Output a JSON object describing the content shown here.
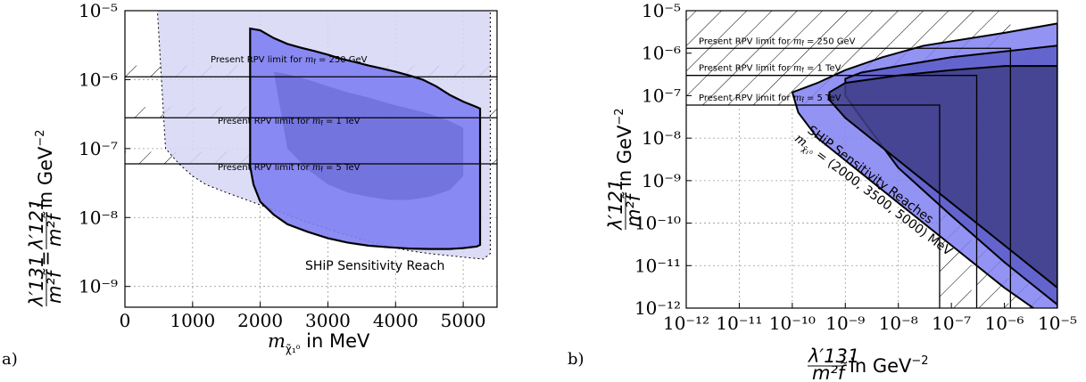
{
  "panel_a_label": "a)",
  "panel_b_label": "b)",
  "colors": {
    "light_region": "#d6d6f6",
    "mid_region": "#8080f2",
    "dark_region": "#5c5cc8",
    "dark_b": "#40408a",
    "band_fill": "#ffffff"
  },
  "chart_data": [
    {
      "type": "area",
      "panel": "a)",
      "xlabel": "m_{χ̃₁⁰} in MeV",
      "xlabel_main": "m",
      "xlabel_sub": "χ̃₁⁰",
      "xlabel_rest": " in MeV",
      "ylabel": "λ'131/m²f̃ = λ'121/m²f̃ in GeV⁻²",
      "ylabel_text": "in GeV",
      "ylabel_exp": "−2",
      "ylabel_frac1_num": "λ′131",
      "ylabel_frac2_num": "λ′121",
      "ylabel_den": "m²f̃",
      "xlim": [
        0,
        5500
      ],
      "ylim": [
        5e-10,
        1e-05
      ],
      "yscale": "log",
      "grid": true,
      "x_ticks": [
        "0",
        "1000",
        "2000",
        "3000",
        "4000",
        "5000"
      ],
      "x_tick_values": [
        0,
        1000,
        2000,
        3000,
        4000,
        5000
      ],
      "y_ticks": [
        "10⁻⁵",
        "10⁻⁶",
        "10⁻⁷",
        "10⁻⁸",
        "10⁻⁹"
      ],
      "y_tick_values": [
        1e-05,
        1e-06,
        1e-07,
        1e-08,
        1e-09
      ],
      "annotations": [
        {
          "text": "Present RPV limit for m_f̃ = 250 GeV",
          "prefix": "Present RPV limit for ",
          "var": "m",
          "sub": "f̃",
          "suffix": " = 250 GeV",
          "y": 1.1e-06
        },
        {
          "text": "Present RPV limit for m_f̃ = 1 TeV",
          "prefix": "Present RPV limit for ",
          "var": "m",
          "sub": "f̃",
          "suffix": " = 1 TeV",
          "y": 2.8e-07
        },
        {
          "text": "Present RPV limit for m_f̃ = 5 TeV",
          "prefix": "Present RPV limit for ",
          "var": "m",
          "sub": "f̃",
          "suffix": " = 5 TeV",
          "y": 6e-08
        }
      ],
      "sensitivity_label": "SHiP Sensitivity Reach",
      "series": [
        {
          "name": "",
          "role": "outer-dotted",
          "x": [
            480,
            500,
            700,
            900,
            1100,
            1300,
            1500,
            1700,
            1900,
            2100,
            2300,
            2500,
            2700,
            2900,
            3100,
            3300,
            3500,
            3700,
            3900,
            4100,
            4300,
            4500,
            4700,
            4900,
            5100,
            5300,
            5400,
            5400,
            5300,
            5100,
            4800,
            4500,
            4200,
            3900,
            3600,
            3300,
            3000,
            2700,
            2400,
            2100,
            1800,
            1500,
            1200,
            1000,
            800,
            600,
            480
          ],
          "y": [
            1e-05,
            1e-05,
            1e-05,
            1e-05,
            1e-05,
            1e-05,
            1e-05,
            1e-05,
            1e-05,
            1e-05,
            1e-05,
            1e-05,
            1e-05,
            1e-05,
            1e-05,
            1e-05,
            1e-05,
            1e-05,
            1e-05,
            1e-05,
            1e-05,
            1e-05,
            1e-05,
            1e-05,
            1e-05,
            1e-05,
            1e-05,
            3e-09,
            2.5e-09,
            2.6e-09,
            2.8e-09,
            3e-09,
            3.3e-09,
            3.8e-09,
            4.5e-09,
            5.5e-09,
            6.8e-09,
            8.5e-09,
            1.1e-08,
            1.4e-08,
            1.8e-08,
            2.3e-08,
            3e-08,
            4e-08,
            6e-08,
            1e-07,
            1e-05
          ]
        },
        {
          "name": "",
          "role": "main-solid",
          "x": [
            1850,
            1850,
            2000,
            2200,
            2400,
            2600,
            2800,
            3000,
            3200,
            3400,
            3600,
            3800,
            4000,
            4200,
            4400,
            4600,
            4800,
            5000,
            5200,
            5250,
            5250,
            5200,
            5000,
            4800,
            4500,
            4200,
            3900,
            3600,
            3300,
            3000,
            2700,
            2400,
            2200,
            2000,
            1900,
            1850
          ],
          "y": [
            5.5e-08,
            5.5e-06,
            5.2e-06,
            4e-06,
            3.3e-06,
            2.9e-06,
            2.6e-06,
            2.3e-06,
            2e-06,
            1.8e-06,
            1.6e-06,
            1.45e-06,
            1.3e-06,
            1.15e-06,
            1e-06,
            8e-07,
            6e-07,
            4.8e-07,
            4e-07,
            3.8e-07,
            4e-09,
            3.8e-09,
            3.6e-09,
            3.5e-09,
            3.5e-09,
            3.55e-09,
            3.7e-09,
            3.9e-09,
            4.3e-09,
            5e-09,
            6.2e-09,
            8e-09,
            1.1e-08,
            1.7e-08,
            3e-08,
            5.5e-08
          ]
        },
        {
          "name": "",
          "role": "inner-dark",
          "x": [
            2200,
            2400,
            2700,
            3000,
            3300,
            3600,
            3900,
            4200,
            4500,
            4800,
            5000,
            5000,
            4800,
            4500,
            4200,
            3900,
            3600,
            3300,
            3000,
            2700,
            2400,
            2200
          ],
          "y": [
            1.3e-06,
            1.2e-06,
            1e-06,
            8e-07,
            6.5e-07,
            5.5e-07,
            4.5e-07,
            3.8e-07,
            3.2e-07,
            2.5e-07,
            2e-07,
            4e-08,
            2.5e-08,
            2e-08,
            1.8e-08,
            1.8e-08,
            2e-08,
            2.3e-08,
            3e-08,
            5e-08,
            1e-07,
            1.3e-06
          ]
        }
      ]
    },
    {
      "type": "area",
      "panel": "b)",
      "xlabel": "λ'131/m²f̃ in GeV⁻²",
      "xlabel_num": "λ′131",
      "xlabel_den": "m²f̃",
      "xlabel_text": "in GeV",
      "xlabel_exp": "−2",
      "ylabel": "λ'121/m²f̃ in GeV⁻²",
      "ylabel_num": "λ′121",
      "ylabel_den": "m²f̃",
      "ylabel_text": "in GeV",
      "ylabel_exp": "−2",
      "xscale": "log",
      "yscale": "log",
      "xlim": [
        1e-12,
        1e-05
      ],
      "ylim": [
        1e-12,
        1e-05
      ],
      "grid": true,
      "x_ticks": [
        "10⁻¹²",
        "10⁻¹¹",
        "10⁻¹⁰",
        "10⁻⁹",
        "10⁻⁸",
        "10⁻⁷",
        "10⁻⁶",
        "10⁻⁵"
      ],
      "y_ticks": [
        "10⁻⁵",
        "10⁻⁶",
        "10⁻⁷",
        "10⁻⁸",
        "10⁻⁹",
        "10⁻¹⁰",
        "10⁻¹¹",
        "10⁻¹²"
      ],
      "tick_exponents": [
        -12,
        -11,
        -10,
        -9,
        -8,
        -7,
        -6,
        -5
      ],
      "annotations": [
        {
          "text": "Present RPV limit for m_f̃ = 250 GeV",
          "prefix": "Present RPV limit for ",
          "var": "m",
          "sub": "f̃",
          "suffix": " = 250 GeV",
          "limit": 1.3e-06
        },
        {
          "text": "Present RPV limit for m_f̃ = 1 TeV",
          "prefix": "Present RPV limit for ",
          "var": "m",
          "sub": "f̃",
          "suffix": " = 1 TeV",
          "limit": 3e-07
        },
        {
          "text": "Present RPV limit for m_f̃ = 5 TeV",
          "prefix": "Present RPV limit for ",
          "var": "m",
          "sub": "f̃",
          "suffix": " = 5 TeV",
          "limit": 6e-08
        }
      ],
      "sensitivity_label_line1": "SHiP Sensitivity Reaches",
      "sensitivity_label_line2": "m_χ̃₁⁰ = (2000, 3500, 5000) MeV",
      "sens_var": "m",
      "sens_sub": "χ̃₁⁰",
      "sens_rest": " = (2000, 3500, 5000) MeV",
      "series": [
        {
          "name": "",
          "role": "2000 MeV",
          "x": [
            1e-05,
            1e-06,
            3e-08,
            5e-09,
            1e-09,
            3e-10,
            1e-10,
            1.3e-10,
            3e-10,
            1e-09,
            1e-08,
            1e-07,
            1e-06,
            1e-05
          ],
          "y": [
            5e-06,
            3e-06,
            1.5e-06,
            8e-07,
            4e-07,
            2e-07,
            1.2e-07,
            4e-08,
            1e-08,
            3e-09,
            3e-10,
            3e-11,
            3e-12,
            4e-13
          ]
        },
        {
          "name": "",
          "role": "3500 MeV",
          "x": [
            1e-05,
            1e-06,
            1e-07,
            1e-08,
            2e-09,
            1e-09,
            1e-09,
            2e-09,
            1e-08,
            1e-07,
            1e-06,
            1e-05
          ],
          "y": [
            1.5e-06,
            1.1e-06,
            8e-07,
            5e-07,
            3.5e-07,
            2.5e-07,
            1e-07,
            3e-08,
            2e-09,
            1.5e-10,
            1.2e-11,
            1.2e-12
          ]
        },
        {
          "name": "",
          "role": "5000 MeV",
          "x": [
            1e-05,
            1e-06,
            1e-07,
            1e-08,
            1e-09,
            5e-10,
            5e-10,
            1e-09,
            1e-08,
            1e-07,
            1e-06,
            1e-05
          ],
          "y": [
            5e-07,
            5e-07,
            4e-07,
            3e-07,
            2e-07,
            1.2e-07,
            8e-08,
            3e-08,
            3e-09,
            3e-10,
            3e-11,
            3e-12
          ]
        }
      ]
    }
  ]
}
